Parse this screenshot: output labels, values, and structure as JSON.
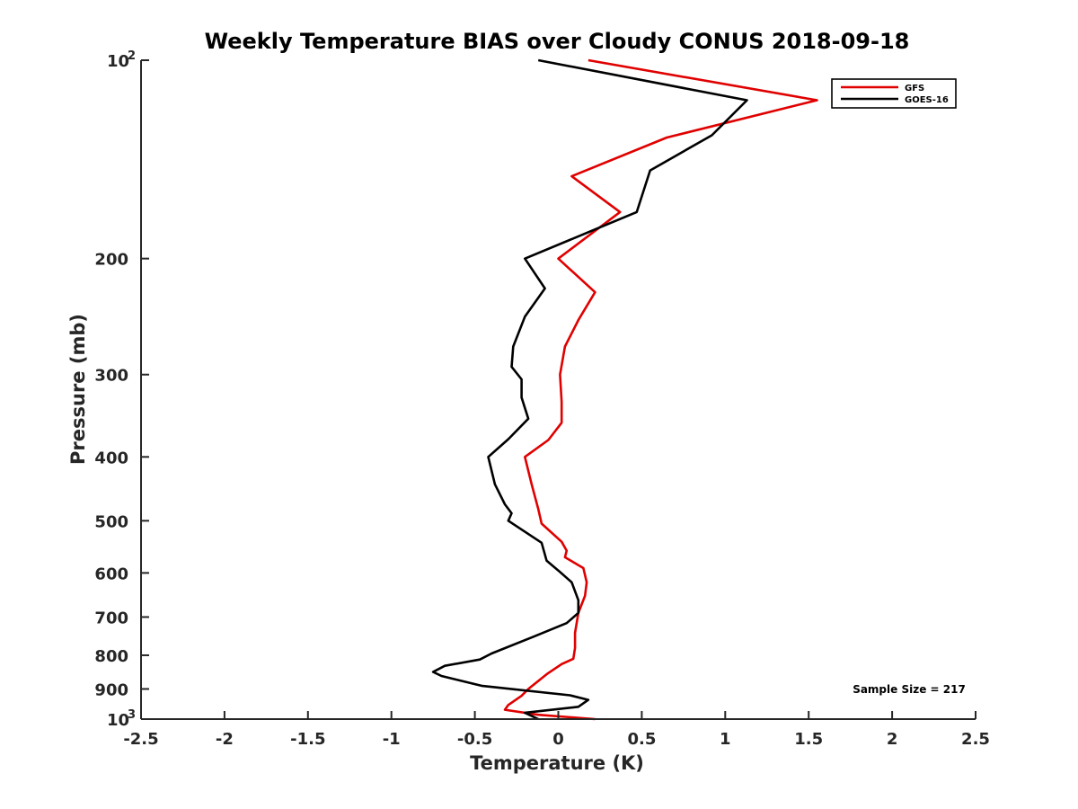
{
  "chart_data": {
    "type": "line",
    "title": "Weekly Temperature BIAS over Cloudy CONUS 2018-09-18",
    "xlabel": "Temperature (K)",
    "ylabel": "Pressure (mb)",
    "xlim": [
      -2.5,
      2.5
    ],
    "ylim": [
      100,
      1000
    ],
    "y_scale": "log",
    "y_reversed": true,
    "grid": false,
    "legend_position": "top-right",
    "x_ticks": [
      -2.5,
      -2,
      -1.5,
      -1,
      -0.5,
      0,
      0.5,
      1,
      1.5,
      2,
      2.5
    ],
    "x_tick_labels": [
      "-2.5",
      "-2",
      "-1.5",
      "-1",
      "-0.5",
      "0",
      "0.5",
      "1",
      "1.5",
      "2",
      "2.5"
    ],
    "y_ticks": [
      {
        "value": 100,
        "base": "10",
        "exp": "2"
      },
      {
        "value": 200,
        "label": "200"
      },
      {
        "value": 300,
        "label": "300"
      },
      {
        "value": 400,
        "label": "400"
      },
      {
        "value": 500,
        "label": "500"
      },
      {
        "value": 600,
        "label": "600"
      },
      {
        "value": 700,
        "label": "700"
      },
      {
        "value": 800,
        "label": "800"
      },
      {
        "value": 900,
        "label": "900"
      },
      {
        "value": 1000,
        "base": "10",
        "exp": "3"
      }
    ],
    "annotation": "Sample Size = 217",
    "series": [
      {
        "name": "GFS",
        "color": "#e00000",
        "points": [
          [
            0.18,
            100
          ],
          [
            1.55,
            115
          ],
          [
            0.65,
            131
          ],
          [
            0.08,
            150
          ],
          [
            0.37,
            170
          ],
          [
            0.0,
            200
          ],
          [
            0.22,
            225
          ],
          [
            0.12,
            248
          ],
          [
            0.04,
            272
          ],
          [
            0.01,
            300
          ],
          [
            0.02,
            330
          ],
          [
            0.02,
            355
          ],
          [
            -0.06,
            377
          ],
          [
            -0.2,
            400
          ],
          [
            -0.16,
            440
          ],
          [
            -0.12,
            480
          ],
          [
            -0.1,
            505
          ],
          [
            0.02,
            538
          ],
          [
            0.05,
            555
          ],
          [
            0.04,
            568
          ],
          [
            0.15,
            590
          ],
          [
            0.17,
            620
          ],
          [
            0.16,
            650
          ],
          [
            0.12,
            690
          ],
          [
            0.1,
            740
          ],
          [
            0.1,
            780
          ],
          [
            0.09,
            810
          ],
          [
            0.02,
            825
          ],
          [
            -0.07,
            855
          ],
          [
            -0.18,
            900
          ],
          [
            -0.22,
            922
          ],
          [
            -0.3,
            952
          ],
          [
            -0.32,
            968
          ],
          [
            -0.12,
            985
          ],
          [
            0.22,
            1000
          ]
        ]
      },
      {
        "name": "GOES-16",
        "color": "#000000",
        "points": [
          [
            -0.12,
            100
          ],
          [
            1.13,
            115
          ],
          [
            0.92,
            130
          ],
          [
            0.55,
            147
          ],
          [
            0.47,
            170
          ],
          [
            -0.2,
            200
          ],
          [
            -0.08,
            222
          ],
          [
            -0.2,
            245
          ],
          [
            -0.27,
            272
          ],
          [
            -0.28,
            292
          ],
          [
            -0.22,
            305
          ],
          [
            -0.22,
            325
          ],
          [
            -0.18,
            350
          ],
          [
            -0.3,
            376
          ],
          [
            -0.42,
            400
          ],
          [
            -0.38,
            440
          ],
          [
            -0.32,
            472
          ],
          [
            -0.28,
            487
          ],
          [
            -0.3,
            500
          ],
          [
            -0.1,
            540
          ],
          [
            -0.07,
            575
          ],
          [
            0.0,
            595
          ],
          [
            0.08,
            620
          ],
          [
            0.12,
            660
          ],
          [
            0.12,
            690
          ],
          [
            0.05,
            715
          ],
          [
            -0.15,
            750
          ],
          [
            -0.4,
            795
          ],
          [
            -0.47,
            812
          ],
          [
            -0.68,
            830
          ],
          [
            -0.75,
            848
          ],
          [
            -0.7,
            860
          ],
          [
            -0.46,
            890
          ],
          [
            0.07,
            920
          ],
          [
            0.18,
            935
          ],
          [
            0.12,
            958
          ],
          [
            -0.2,
            978
          ],
          [
            -0.12,
            1000
          ]
        ]
      }
    ]
  }
}
